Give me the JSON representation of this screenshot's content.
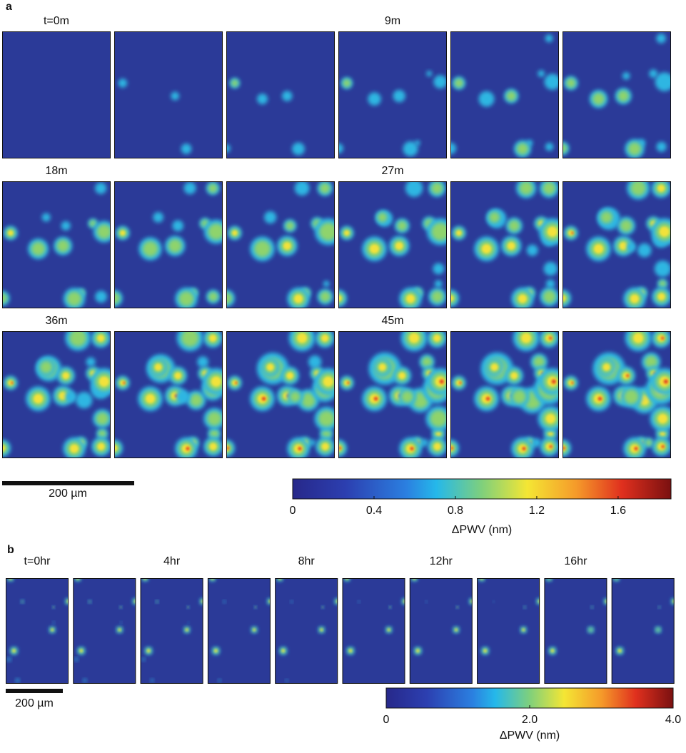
{
  "panel_a": {
    "label": "a",
    "time_labels": [
      "t=0m",
      "9m",
      "18m",
      "27m",
      "36m",
      "45m"
    ],
    "scale_bar": "200 µm",
    "colorbar": {
      "label": "ΔPWV (nm)",
      "lim": [
        0,
        1.86
      ],
      "ticks": [
        0,
        0.4,
        0.8,
        1.2,
        1.6
      ]
    }
  },
  "panel_b": {
    "label": "b",
    "time_labels": [
      "t=0hr",
      "4hr",
      "8hr",
      "12hr",
      "16hr"
    ],
    "scale_bar": "200 µm",
    "colorbar": {
      "label": "ΔPWV (nm)",
      "lim": [
        0,
        4
      ],
      "ticks": [
        0,
        {
          "value": 2,
          "label": "2.0"
        },
        {
          "value": 4,
          "label": "4.0"
        }
      ]
    }
  }
}
